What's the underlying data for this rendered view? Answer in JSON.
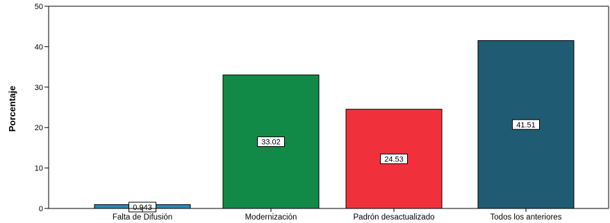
{
  "chart_data": {
    "type": "bar",
    "categories": [
      "Falta de Difusión",
      "Modernización",
      "Padrón desactualizado",
      "Todos los anteriores"
    ],
    "values": [
      0.943,
      33.02,
      24.53,
      41.51
    ],
    "value_labels": [
      "0.943",
      "33.02",
      "24.53",
      "41.51"
    ],
    "colors": [
      "#1f8fb4",
      "#128a47",
      "#f0313b",
      "#1f5c74"
    ],
    "title": "",
    "xlabel": "",
    "ylabel": "Porcentaje",
    "ylim": [
      0,
      50
    ],
    "yticks": [
      0,
      10,
      20,
      30,
      40,
      50
    ],
    "grid": false,
    "legend": "none"
  }
}
